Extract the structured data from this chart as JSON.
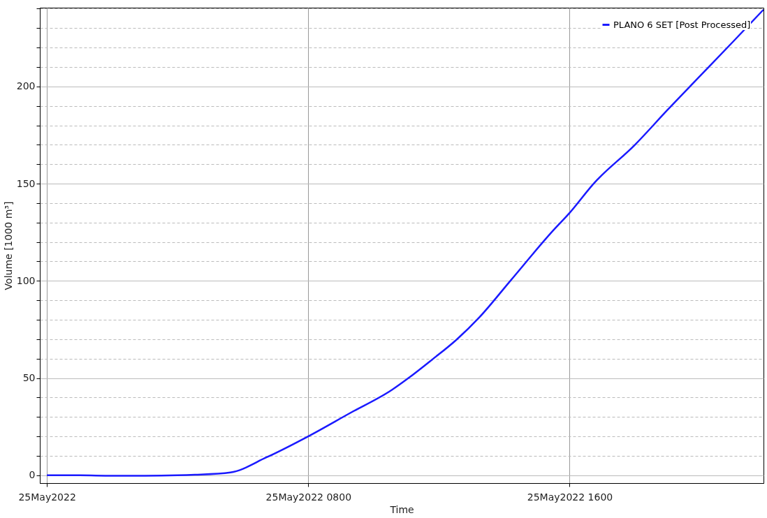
{
  "chart_data": {
    "type": "line",
    "xlabel": "Time",
    "ylabel": "Volume [1000 m³]",
    "x": [
      "2022-05-25T00:00",
      "2022-05-25T01:00",
      "2022-05-25T02:00",
      "2022-05-25T03:00",
      "2022-05-25T04:00",
      "2022-05-25T04:32",
      "2022-05-25T05:37",
      "2022-05-25T06:43",
      "2022-05-25T08:01",
      "2022-05-25T09:16",
      "2022-05-25T10:34",
      "2022-05-25T11:04",
      "2022-05-25T11:47",
      "2022-05-25T12:32",
      "2022-05-25T13:15",
      "2022-05-25T14:11",
      "2022-05-25T15:30",
      "2022-05-25T16:00",
      "2022-05-25T16:44",
      "2022-05-25T18:00",
      "2022-05-25T19:00",
      "2022-05-25T20:00",
      "2022-05-25T21:00",
      "2022-05-25T21:56"
    ],
    "series": [
      {
        "name": "PLANO 6 SET [Post Processed]",
        "color": "#1a1aff",
        "values": [
          0,
          0,
          -0.2,
          -0.2,
          0,
          0.3,
          1.5,
          9.2,
          20.2,
          31.9,
          44,
          50,
          59.4,
          69.7,
          81.5,
          100,
          126,
          135,
          150,
          170,
          188,
          205.5,
          223,
          239.5
        ]
      }
    ],
    "xlim": [
      "2022-05-24T23:47",
      "2022-05-25T21:56"
    ],
    "ylim": [
      -4,
      240.5
    ],
    "xticks": [
      {
        "value": "2022-05-25T00:00",
        "label": "25May2022"
      },
      {
        "value": "2022-05-25T08:00",
        "label": "25May2022 0800"
      },
      {
        "value": "2022-05-25T16:00",
        "label": "25May2022 1600"
      }
    ],
    "yticks": [
      0,
      {
        "value": 10,
        "label": null
      },
      {
        "value": 20,
        "label": null
      },
      {
        "value": 30,
        "label": null
      },
      {
        "value": 40,
        "label": null
      },
      50,
      {
        "value": 60,
        "label": null
      },
      {
        "value": 70,
        "label": null
      },
      {
        "value": 80,
        "label": null
      },
      {
        "value": 90,
        "label": null
      },
      100,
      {
        "value": 110,
        "label": null
      },
      {
        "value": 120,
        "label": null
      },
      {
        "value": 130,
        "label": null
      },
      {
        "value": 140,
        "label": null
      },
      150,
      {
        "value": 160,
        "label": null
      },
      {
        "value": 170,
        "label": null
      },
      {
        "value": 180,
        "label": null
      },
      {
        "value": 190,
        "label": null
      },
      200,
      {
        "value": 210,
        "label": null
      },
      {
        "value": 220,
        "label": null
      },
      {
        "value": 230,
        "label": null
      },
      {
        "value": 240,
        "label": null
      }
    ],
    "grid": true,
    "legend": "top right",
    "marker": "none",
    "line_style": "solid"
  }
}
